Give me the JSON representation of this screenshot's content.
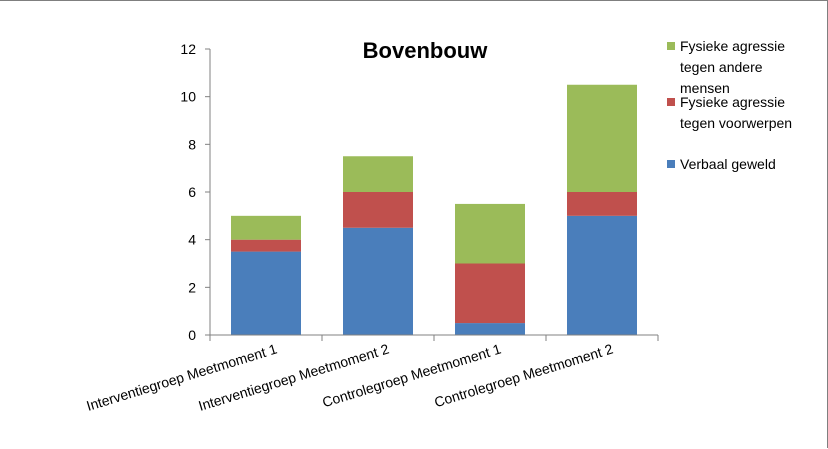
{
  "chart_data": {
    "type": "bar",
    "stacked": true,
    "title": "Bovenbouw",
    "categories": [
      "Interventiegroep Meetmoment 1",
      "Interventiegroep Meetmoment 2",
      "Controlegroep Meetmoment 1",
      "Controlegroep Meetmoment 2"
    ],
    "series": [
      {
        "name": "Verbaal geweld",
        "color": "#4a7ebb",
        "values": [
          3.5,
          4.5,
          0.5,
          5.0
        ]
      },
      {
        "name": "Fysieke agressie tegen voorwerpen",
        "color": "#c0504d",
        "values": [
          0.5,
          1.5,
          2.5,
          1.0
        ]
      },
      {
        "name": "Fysieke agressie tegen andere mensen",
        "color": "#9bbb59",
        "values": [
          1.0,
          1.5,
          2.5,
          4.5
        ]
      }
    ],
    "ylim": [
      0,
      12
    ],
    "yticks": [
      "0",
      "2",
      "4",
      "6",
      "8",
      "10",
      "12"
    ],
    "legend": {
      "placement": "right",
      "entries": [
        {
          "lines": [
            "Fysieke agressie",
            "tegen andere",
            "mensen"
          ],
          "color": "#9bbb59"
        },
        {
          "lines": [
            "Fysieke agressie",
            "tegen voorwerpen"
          ],
          "color": "#c0504d"
        },
        {
          "lines": [
            "Verbaal geweld"
          ],
          "color": "#4a7ebb"
        }
      ]
    },
    "grid": false
  }
}
